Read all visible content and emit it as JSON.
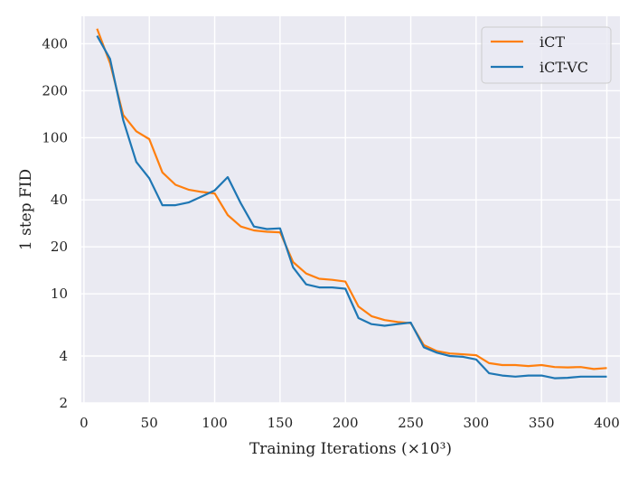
{
  "chart_data": {
    "type": "line",
    "title": "",
    "xlabel": "Training Iterations (×10³)",
    "ylabel": "1 step FID",
    "xlim": [
      -2,
      410
    ],
    "ylim": [
      2,
      600
    ],
    "y_scale": "log",
    "grid": true,
    "legend_position": "top-right",
    "x_ticks": [
      0,
      50,
      100,
      150,
      200,
      250,
      300,
      350,
      400
    ],
    "y_ticks": [
      2,
      4,
      10,
      20,
      40,
      100,
      200,
      400
    ],
    "series": [
      {
        "name": "iCT",
        "color": "#ff7f0e",
        "x": [
          10,
          20,
          30,
          40,
          50,
          60,
          70,
          80,
          90,
          100,
          110,
          120,
          130,
          140,
          150,
          160,
          170,
          180,
          190,
          200,
          210,
          220,
          230,
          240,
          250,
          260,
          270,
          280,
          290,
          300,
          310,
          320,
          330,
          340,
          350,
          360,
          370,
          380,
          390,
          400
        ],
        "y": [
          500,
          300,
          140,
          110,
          98,
          60,
          50,
          46.5,
          45,
          44,
          32,
          27,
          25.5,
          25,
          24.8,
          16,
          13.5,
          12.5,
          12.3,
          12,
          8.3,
          7.2,
          6.8,
          6.6,
          6.5,
          4.7,
          4.3,
          4.15,
          4.1,
          4.05,
          3.6,
          3.5,
          3.5,
          3.45,
          3.5,
          3.4,
          3.38,
          3.4,
          3.3,
          3.35
        ]
      },
      {
        "name": "iCT-VC",
        "color": "#1f77b4",
        "x": [
          10,
          20,
          30,
          40,
          50,
          60,
          70,
          80,
          90,
          100,
          110,
          120,
          130,
          140,
          150,
          160,
          170,
          180,
          190,
          200,
          210,
          220,
          230,
          240,
          250,
          260,
          270,
          280,
          290,
          300,
          310,
          320,
          330,
          340,
          350,
          360,
          370,
          380,
          390,
          400
        ],
        "y": [
          450,
          320,
          130,
          70,
          55,
          37,
          37,
          38.5,
          42,
          46,
          56,
          38,
          27,
          26,
          26.3,
          14.8,
          11.5,
          11,
          11,
          10.8,
          7,
          6.4,
          6.25,
          6.4,
          6.55,
          4.55,
          4.2,
          4.0,
          3.95,
          3.8,
          3.1,
          3.0,
          2.95,
          3.0,
          3.0,
          2.88,
          2.9,
          2.95,
          2.95,
          2.95
        ]
      }
    ]
  }
}
